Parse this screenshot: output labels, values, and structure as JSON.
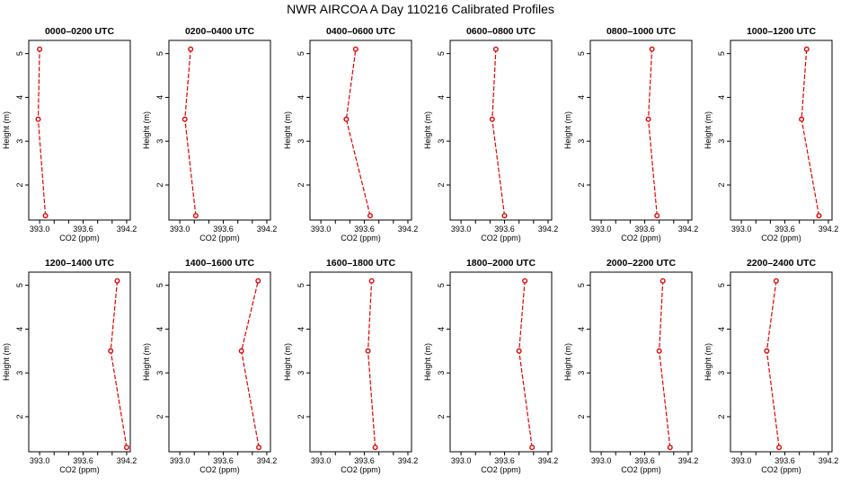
{
  "title": "NWR AIRCOA A  Day 110216  Calibrated Profiles",
  "chart_data": [
    {
      "type": "line",
      "title": "0000–0200 UTC",
      "xlabel": "CO2 (ppm)",
      "ylabel": "Height (m)",
      "xlim": [
        392.85,
        394.25
      ],
      "ylim": [
        1.2,
        5.3
      ],
      "x_ticks": [
        "393.0",
        "393.6",
        "394.2"
      ],
      "y_ticks": [
        "2",
        "3",
        "4",
        "5"
      ],
      "series": [
        {
          "x": [
            393.08,
            392.98,
            393.0
          ],
          "y": [
            1.3,
            3.5,
            5.1
          ]
        }
      ]
    },
    {
      "type": "line",
      "title": "0200–0400 UTC",
      "xlabel": "CO2 (ppm)",
      "ylabel": "Height (m)",
      "xlim": [
        392.85,
        394.25
      ],
      "ylim": [
        1.2,
        5.3
      ],
      "x_ticks": [
        "393.0",
        "393.6",
        "394.2"
      ],
      "y_ticks": [
        "2",
        "3",
        "4",
        "5"
      ],
      "series": [
        {
          "x": [
            393.22,
            393.07,
            393.15
          ],
          "y": [
            1.3,
            3.5,
            5.1
          ]
        }
      ]
    },
    {
      "type": "line",
      "title": "0400–0600 UTC",
      "xlabel": "CO2 (ppm)",
      "ylabel": "Height (m)",
      "xlim": [
        392.85,
        394.25
      ],
      "ylim": [
        1.2,
        5.3
      ],
      "x_ticks": [
        "393.0",
        "393.6",
        "394.2"
      ],
      "y_ticks": [
        "2",
        "3",
        "4",
        "5"
      ],
      "series": [
        {
          "x": [
            393.68,
            393.35,
            393.48
          ],
          "y": [
            1.3,
            3.5,
            5.1
          ]
        }
      ]
    },
    {
      "type": "line",
      "title": "0600–0800 UTC",
      "xlabel": "CO2 (ppm)",
      "ylabel": "Height (m)",
      "xlim": [
        392.85,
        394.25
      ],
      "ylim": [
        1.2,
        5.3
      ],
      "x_ticks": [
        "393.0",
        "393.6",
        "394.2"
      ],
      "y_ticks": [
        "2",
        "3",
        "4",
        "5"
      ],
      "series": [
        {
          "x": [
            393.6,
            393.43,
            393.48
          ],
          "y": [
            1.3,
            3.5,
            5.1
          ]
        }
      ]
    },
    {
      "type": "line",
      "title": "0800–1000 UTC",
      "xlabel": "CO2 (ppm)",
      "ylabel": "Height (m)",
      "xlim": [
        392.85,
        394.25
      ],
      "ylim": [
        1.2,
        5.3
      ],
      "x_ticks": [
        "393.0",
        "393.6",
        "394.2"
      ],
      "y_ticks": [
        "2",
        "3",
        "4",
        "5"
      ],
      "series": [
        {
          "x": [
            393.77,
            393.65,
            393.7
          ],
          "y": [
            1.3,
            3.5,
            5.1
          ]
        }
      ]
    },
    {
      "type": "line",
      "title": "1000–1200 UTC",
      "xlabel": "CO2 (ppm)",
      "ylabel": "Height (m)",
      "xlim": [
        392.85,
        394.25
      ],
      "ylim": [
        1.2,
        5.3
      ],
      "x_ticks": [
        "393.0",
        "393.6",
        "394.2"
      ],
      "y_ticks": [
        "2",
        "3",
        "4",
        "5"
      ],
      "series": [
        {
          "x": [
            394.07,
            393.83,
            393.9
          ],
          "y": [
            1.3,
            3.5,
            5.1
          ]
        }
      ]
    },
    {
      "type": "line",
      "title": "1200–1400 UTC",
      "xlabel": "CO2 (ppm)",
      "ylabel": "Height (m)",
      "xlim": [
        392.85,
        394.25
      ],
      "ylim": [
        1.2,
        5.3
      ],
      "x_ticks": [
        "393.0",
        "393.6",
        "394.2"
      ],
      "y_ticks": [
        "2",
        "3",
        "4",
        "5"
      ],
      "series": [
        {
          "x": [
            394.2,
            393.98,
            394.07
          ],
          "y": [
            1.3,
            3.5,
            5.1
          ]
        }
      ]
    },
    {
      "type": "line",
      "title": "1400–1600 UTC",
      "xlabel": "CO2 (ppm)",
      "ylabel": "Height (m)",
      "xlim": [
        392.85,
        394.25
      ],
      "ylim": [
        1.2,
        5.3
      ],
      "x_ticks": [
        "393.0",
        "393.6",
        "394.2"
      ],
      "y_ticks": [
        "2",
        "3",
        "4",
        "5"
      ],
      "series": [
        {
          "x": [
            394.09,
            393.85,
            394.08
          ],
          "y": [
            1.3,
            3.5,
            5.1
          ]
        }
      ]
    },
    {
      "type": "line",
      "title": "1600–1800 UTC",
      "xlabel": "CO2 (ppm)",
      "ylabel": "Height (m)",
      "xlim": [
        392.85,
        394.25
      ],
      "ylim": [
        1.2,
        5.3
      ],
      "x_ticks": [
        "393.0",
        "393.6",
        "394.2"
      ],
      "y_ticks": [
        "2",
        "3",
        "4",
        "5"
      ],
      "series": [
        {
          "x": [
            393.75,
            393.65,
            393.7
          ],
          "y": [
            1.3,
            3.5,
            5.1
          ]
        }
      ]
    },
    {
      "type": "line",
      "title": "1800–2000 UTC",
      "xlabel": "CO2 (ppm)",
      "ylabel": "Height (m)",
      "xlim": [
        392.85,
        394.25
      ],
      "ylim": [
        1.2,
        5.3
      ],
      "x_ticks": [
        "393.0",
        "393.6",
        "394.2"
      ],
      "y_ticks": [
        "2",
        "3",
        "4",
        "5"
      ],
      "series": [
        {
          "x": [
            393.98,
            393.8,
            393.88
          ],
          "y": [
            1.3,
            3.5,
            5.1
          ]
        }
      ]
    },
    {
      "type": "line",
      "title": "2000–2200 UTC",
      "xlabel": "CO2 (ppm)",
      "ylabel": "Height (m)",
      "xlim": [
        392.85,
        394.25
      ],
      "ylim": [
        1.2,
        5.3
      ],
      "x_ticks": [
        "393.0",
        "393.6",
        "394.2"
      ],
      "y_ticks": [
        "2",
        "3",
        "4",
        "5"
      ],
      "series": [
        {
          "x": [
            393.95,
            393.8,
            393.85
          ],
          "y": [
            1.3,
            3.5,
            5.1
          ]
        }
      ]
    },
    {
      "type": "line",
      "title": "2200–2400 UTC",
      "xlabel": "CO2 (ppm)",
      "ylabel": "Height (m)",
      "xlim": [
        392.85,
        394.25
      ],
      "ylim": [
        1.2,
        5.3
      ],
      "x_ticks": [
        "393.0",
        "393.6",
        "394.2"
      ],
      "y_ticks": [
        "2",
        "3",
        "4",
        "5"
      ],
      "series": [
        {
          "x": [
            393.52,
            393.35,
            393.48
          ],
          "y": [
            1.3,
            3.5,
            5.1
          ]
        }
      ]
    }
  ]
}
